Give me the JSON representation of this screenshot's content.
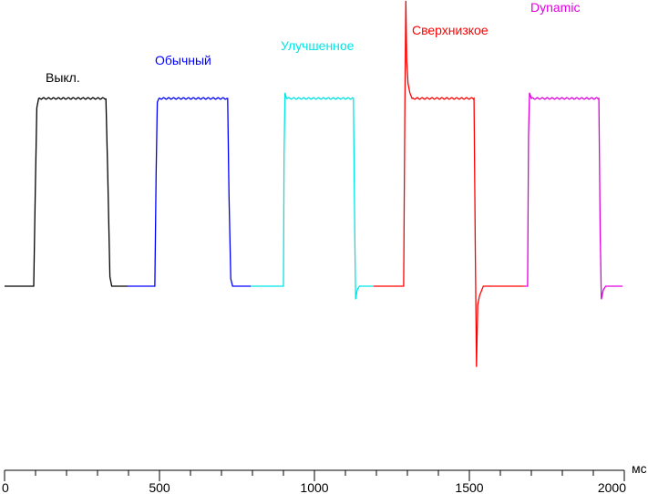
{
  "chart_data": {
    "type": "line",
    "title": "",
    "xlabel": "мс",
    "ylabel": "",
    "xlim": [
      0,
      2000
    ],
    "ylim": [
      -100,
      150
    ],
    "x_ticks": [
      0,
      500,
      1000,
      1500,
      2000
    ],
    "x_minor_step": 100,
    "grid": false,
    "series": [
      {
        "name": "Выкл.",
        "color": "#000000",
        "points": [
          [
            0,
            0
          ],
          [
            94,
            0
          ],
          [
            99,
            50
          ],
          [
            104,
            95
          ],
          [
            110,
            100
          ],
          [
            327,
            100
          ],
          [
            333,
            60
          ],
          [
            340,
            5
          ],
          [
            346,
            0
          ],
          [
            397,
            0
          ]
        ]
      },
      {
        "name": "Обычный",
        "color": "#0000ff",
        "points": [
          [
            397,
            0
          ],
          [
            485,
            0
          ],
          [
            489,
            60
          ],
          [
            493,
            98
          ],
          [
            498,
            100
          ],
          [
            720,
            100
          ],
          [
            724,
            50
          ],
          [
            730,
            4
          ],
          [
            736,
            0
          ],
          [
            794,
            0
          ]
        ]
      },
      {
        "name": "Улучшенное",
        "color": "#00e5e5",
        "points": [
          [
            794,
            0
          ],
          [
            900,
            0
          ],
          [
            902,
            70
          ],
          [
            905,
            103
          ],
          [
            910,
            100
          ],
          [
            1126,
            100
          ],
          [
            1130,
            30
          ],
          [
            1133,
            -7
          ],
          [
            1138,
            -2
          ],
          [
            1145,
            0
          ],
          [
            1191,
            0
          ]
        ]
      },
      {
        "name": "Сверхнизкое",
        "color": "#ff0000",
        "points": [
          [
            1191,
            0
          ],
          [
            1288,
            0
          ],
          [
            1292,
            100
          ],
          [
            1295,
            152
          ],
          [
            1298,
            120
          ],
          [
            1302,
            108
          ],
          [
            1308,
            103
          ],
          [
            1315,
            100
          ],
          [
            1515,
            100
          ],
          [
            1519,
            20
          ],
          [
            1523,
            -43
          ],
          [
            1527,
            -10
          ],
          [
            1533,
            -5
          ],
          [
            1545,
            0
          ],
          [
            1676,
            0
          ]
        ]
      },
      {
        "name": "Dynamic",
        "color": "#e000e0",
        "points": [
          [
            1676,
            0
          ],
          [
            1688,
            0
          ],
          [
            1691,
            80
          ],
          [
            1694,
            103
          ],
          [
            1700,
            100
          ],
          [
            1918,
            100
          ],
          [
            1922,
            30
          ],
          [
            1926,
            -7
          ],
          [
            1932,
            -2
          ],
          [
            1940,
            0
          ],
          [
            1994,
            0
          ]
        ]
      }
    ]
  }
}
